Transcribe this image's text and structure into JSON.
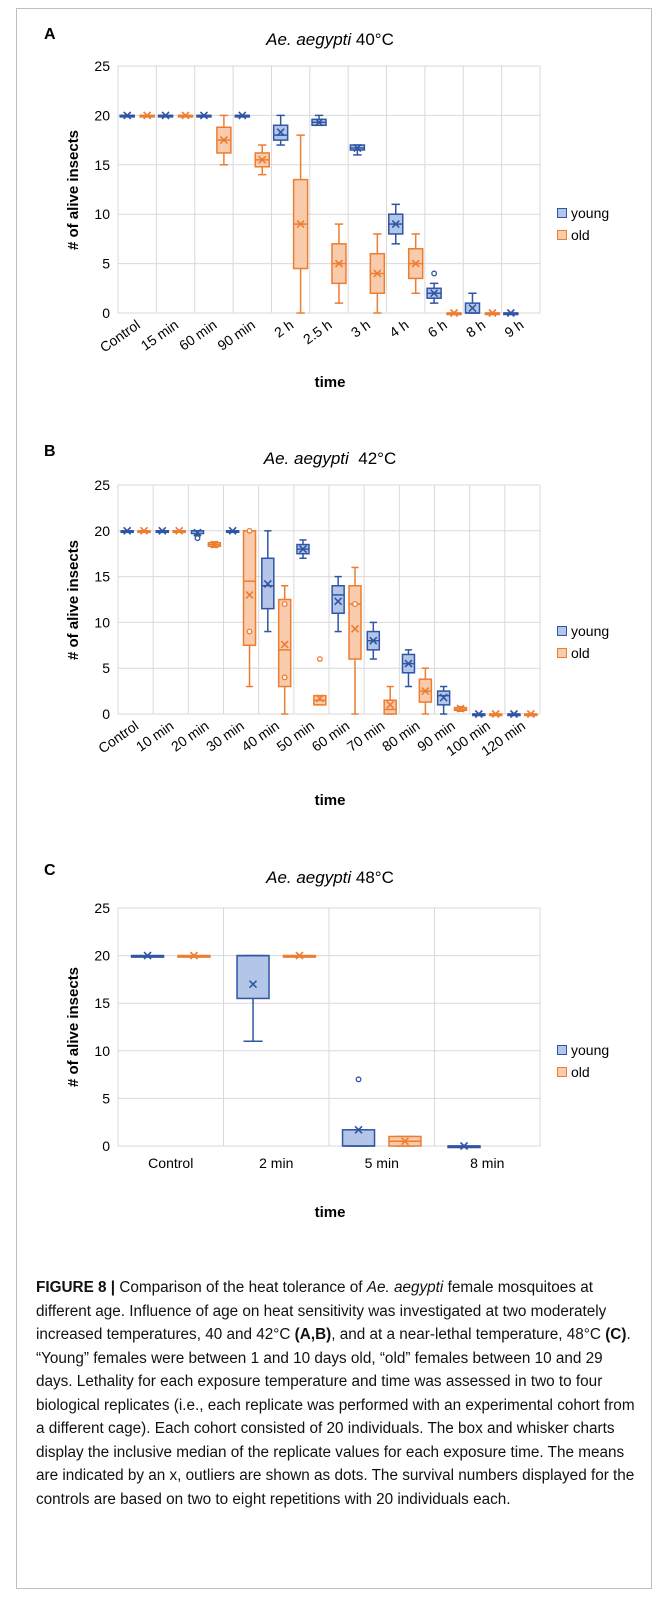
{
  "figure": {
    "label": "FIGURE 8 |",
    "caption": {
      "part1": " Comparison of the heat tolerance of ",
      "species": "Ae. aegypti",
      "part2": " female mosquitoes at different age. Influence of age on heat sensitivity was investigated at two moderately increased temperatures, 40 and 42°C ",
      "ref_ab": "(A,B)",
      "part3": ", and at a near-lethal temperature, 48°C ",
      "ref_c": "(C)",
      "part4": ". “Young” females were between 1 and 10 days old, “old” females between 10 and 29 days. Lethality for each exposure temperature and time was assessed in two to four biological replicates (i.e., each replicate was performed with an experimental cohort from a different cage). Each cohort consisted of 20 individuals. The box and whisker charts display the inclusive median of the replicate values for each exposure time. The means are indicated by an x, outliers are shown as dots. The survival numbers displayed for the controls are based on two to eight repetitions with 20 individuals each."
    }
  },
  "colors": {
    "young": "#2f55a4",
    "young_fill": "#b4c6e7",
    "old": "#ed7d31",
    "old_fill": "#f8cbad",
    "grid": "#d9d9d9"
  },
  "chart_data": [
    {
      "panel": "A",
      "type": "box",
      "title_species": "Ae. aegypti",
      "title_temp": " 40°C",
      "xlabel": "time",
      "ylabel": "# of alive insects",
      "ylim": [
        0,
        25
      ],
      "yticks": [
        0,
        5,
        10,
        15,
        20,
        25
      ],
      "legend": [
        "young",
        "old"
      ],
      "legend_position": "right",
      "categories": [
        "Control",
        "15 min",
        "60 min",
        "90 min",
        "2 h",
        "2.5 h",
        "3 h",
        "4 h",
        "6 h",
        "8 h",
        "9 h"
      ],
      "series": [
        {
          "name": "young",
          "boxes": [
            {
              "cat": 0,
              "min": 20,
              "q1": 20,
              "med": 20,
              "q3": 20,
              "max": 20,
              "mean": 20
            },
            {
              "cat": 1,
              "min": 20,
              "q1": 20,
              "med": 20,
              "q3": 20,
              "max": 20,
              "mean": 20
            },
            {
              "cat": 2,
              "min": 20,
              "q1": 20,
              "med": 20,
              "q3": 20,
              "max": 20,
              "mean": 20
            },
            {
              "cat": 3,
              "min": 20,
              "q1": 20,
              "med": 20,
              "q3": 20,
              "max": 20,
              "mean": 20
            },
            {
              "cat": 4,
              "min": 17,
              "q1": 17.5,
              "med": 18,
              "q3": 19,
              "max": 20,
              "mean": 18.3
            },
            {
              "cat": 5,
              "min": 19,
              "q1": 19,
              "med": 19.3,
              "q3": 19.6,
              "max": 20,
              "mean": 19.3
            },
            {
              "cat": 6,
              "min": 16,
              "q1": 16.5,
              "med": 16.7,
              "q3": 17,
              "max": 17,
              "mean": 16.7
            },
            {
              "cat": 7,
              "min": 7,
              "q1": 8,
              "med": 9,
              "q3": 10,
              "max": 11,
              "mean": 9
            },
            {
              "cat": 8,
              "min": 1,
              "q1": 1.5,
              "med": 2,
              "q3": 2.5,
              "max": 3,
              "mean": 2,
              "outliers": [
                4
              ]
            },
            {
              "cat": 9,
              "min": 0,
              "q1": 0,
              "med": 0,
              "q3": 1,
              "max": 2,
              "mean": 0.5
            },
            {
              "cat": 10,
              "min": 0,
              "q1": 0,
              "med": 0,
              "q3": 0,
              "max": 0,
              "mean": 0
            }
          ]
        },
        {
          "name": "old",
          "boxes": [
            {
              "cat": 0,
              "min": 20,
              "q1": 20,
              "med": 20,
              "q3": 20,
              "max": 20,
              "mean": 20
            },
            {
              "cat": 1,
              "min": 20,
              "q1": 20,
              "med": 20,
              "q3": 20,
              "max": 20,
              "mean": 20
            },
            {
              "cat": 2,
              "min": 15,
              "q1": 16.2,
              "med": 17.5,
              "q3": 18.8,
              "max": 20,
              "mean": 17.5
            },
            {
              "cat": 3,
              "min": 14,
              "q1": 14.8,
              "med": 15.5,
              "q3": 16.2,
              "max": 17,
              "mean": 15.5
            },
            {
              "cat": 4,
              "min": 0,
              "q1": 4.5,
              "med": 9,
              "q3": 13.5,
              "max": 18,
              "mean": 9
            },
            {
              "cat": 5,
              "min": 1,
              "q1": 3,
              "med": 5,
              "q3": 7,
              "max": 9,
              "mean": 5
            },
            {
              "cat": 6,
              "min": 0,
              "q1": 2,
              "med": 4,
              "q3": 6,
              "max": 8,
              "mean": 4
            },
            {
              "cat": 7,
              "min": 2,
              "q1": 3.5,
              "med": 5,
              "q3": 6.5,
              "max": 8,
              "mean": 5
            },
            {
              "cat": 8,
              "min": 0,
              "q1": 0,
              "med": 0,
              "q3": 0,
              "max": 0,
              "mean": 0
            },
            {
              "cat": 9,
              "min": 0,
              "q1": 0,
              "med": 0,
              "q3": 0,
              "max": 0,
              "mean": 0
            }
          ]
        }
      ]
    },
    {
      "panel": "B",
      "type": "box",
      "title_species": "Ae. aegypti",
      "title_temp": "  42°C",
      "xlabel": "time",
      "ylabel": "# of alive insects",
      "ylim": [
        0,
        25
      ],
      "yticks": [
        0,
        5,
        10,
        15,
        20,
        25
      ],
      "legend": [
        "young",
        "old"
      ],
      "legend_position": "right",
      "categories": [
        "Control",
        "10 min",
        "20 min",
        "30 min",
        "40 min",
        "50 min",
        "60 min",
        "70 min",
        "80 min",
        "90 min",
        "100 min",
        "120 min"
      ],
      "series": [
        {
          "name": "young",
          "boxes": [
            {
              "cat": 0,
              "min": 20,
              "q1": 20,
              "med": 20,
              "q3": 20,
              "max": 20,
              "mean": 20
            },
            {
              "cat": 1,
              "min": 20,
              "q1": 20,
              "med": 20,
              "q3": 20,
              "max": 20,
              "mean": 20
            },
            {
              "cat": 2,
              "min": 19.5,
              "q1": 19.7,
              "med": 20,
              "q3": 20,
              "max": 20,
              "mean": 19.8,
              "outliers": [
                19.2
              ]
            },
            {
              "cat": 3,
              "min": 20,
              "q1": 20,
              "med": 20,
              "q3": 20,
              "max": 20,
              "mean": 20
            },
            {
              "cat": 4,
              "min": 9,
              "q1": 11.5,
              "med": 14,
              "q3": 17,
              "max": 20,
              "mean": 14.2
            },
            {
              "cat": 5,
              "min": 17,
              "q1": 17.5,
              "med": 18,
              "q3": 18.5,
              "max": 19,
              "mean": 18
            },
            {
              "cat": 6,
              "min": 9,
              "q1": 11,
              "med": 13,
              "q3": 14,
              "max": 15,
              "mean": 12.3
            },
            {
              "cat": 7,
              "min": 6,
              "q1": 7,
              "med": 8,
              "q3": 9,
              "max": 10,
              "mean": 8
            },
            {
              "cat": 8,
              "min": 3,
              "q1": 4.5,
              "med": 5.5,
              "q3": 6.5,
              "max": 7,
              "mean": 5.5
            },
            {
              "cat": 9,
              "min": 0,
              "q1": 1,
              "med": 2,
              "q3": 2.5,
              "max": 3,
              "mean": 1.8
            },
            {
              "cat": 10,
              "min": 0,
              "q1": 0,
              "med": 0,
              "q3": 0,
              "max": 0,
              "mean": 0
            },
            {
              "cat": 11,
              "min": 0,
              "q1": 0,
              "med": 0,
              "q3": 0,
              "max": 0,
              "mean": 0
            }
          ]
        },
        {
          "name": "old",
          "boxes": [
            {
              "cat": 0,
              "min": 20,
              "q1": 20,
              "med": 20,
              "q3": 20,
              "max": 20,
              "mean": 20
            },
            {
              "cat": 1,
              "min": 20,
              "q1": 20,
              "med": 20,
              "q3": 20,
              "max": 20,
              "mean": 20
            },
            {
              "cat": 2,
              "min": 18.2,
              "q1": 18.3,
              "med": 18.5,
              "q3": 18.7,
              "max": 18.8,
              "mean": 18.5
            },
            {
              "cat": 3,
              "min": 3,
              "q1": 7.5,
              "med": 14.5,
              "q3": 20,
              "max": 20,
              "mean": 13,
              "outliers": [
                9,
                20
              ]
            },
            {
              "cat": 4,
              "min": 0,
              "q1": 3,
              "med": 7,
              "q3": 12.5,
              "max": 14,
              "mean": 7.6,
              "outliers": [
                4,
                12
              ]
            },
            {
              "cat": 5,
              "min": 1,
              "q1": 1,
              "med": 1.5,
              "q3": 2,
              "max": 2,
              "mean": 1.7,
              "outliers": [
                6
              ]
            },
            {
              "cat": 6,
              "min": 0,
              "q1": 6,
              "med": 12,
              "q3": 14,
              "max": 16,
              "mean": 9.3,
              "outliers": [
                12
              ]
            },
            {
              "cat": 7,
              "min": 0,
              "q1": 0,
              "med": 0.5,
              "q3": 1.5,
              "max": 3,
              "mean": 1
            },
            {
              "cat": 8,
              "min": 0,
              "q1": 1.3,
              "med": 2.5,
              "q3": 3.8,
              "max": 5,
              "mean": 2.5
            },
            {
              "cat": 9,
              "min": 0.3,
              "q1": 0.4,
              "med": 0.5,
              "q3": 0.7,
              "max": 0.8,
              "mean": 0.6
            },
            {
              "cat": 10,
              "min": 0,
              "q1": 0,
              "med": 0,
              "q3": 0,
              "max": 0,
              "mean": 0
            },
            {
              "cat": 11,
              "min": 0,
              "q1": 0,
              "med": 0,
              "q3": 0,
              "max": 0,
              "mean": 0
            }
          ]
        }
      ]
    },
    {
      "panel": "C",
      "type": "box",
      "title_species": "Ae. aegypti",
      "title_temp": " 48°C",
      "xlabel": "time",
      "ylabel": "# of alive insects",
      "ylim": [
        0,
        25
      ],
      "yticks": [
        0,
        5,
        10,
        15,
        20,
        25
      ],
      "legend": [
        "young",
        "old"
      ],
      "legend_position": "right",
      "categories": [
        "Control",
        "2 min",
        "5 min",
        "8 min"
      ],
      "series": [
        {
          "name": "young",
          "boxes": [
            {
              "cat": 0,
              "min": 20,
              "q1": 20,
              "med": 20,
              "q3": 20,
              "max": 20,
              "mean": 20
            },
            {
              "cat": 1,
              "min": 11,
              "q1": 15.5,
              "med": 20,
              "q3": 20,
              "max": 20,
              "mean": 17
            },
            {
              "cat": 2,
              "min": 0,
              "q1": 0,
              "med": 0,
              "q3": 1.7,
              "max": 1.7,
              "mean": 1.7,
              "outliers": [
                7
              ]
            },
            {
              "cat": 3,
              "min": 0,
              "q1": 0,
              "med": 0,
              "q3": 0,
              "max": 0,
              "mean": 0
            }
          ]
        },
        {
          "name": "old",
          "boxes": [
            {
              "cat": 0,
              "min": 20,
              "q1": 20,
              "med": 20,
              "q3": 20,
              "max": 20,
              "mean": 20
            },
            {
              "cat": 1,
              "min": 20,
              "q1": 20,
              "med": 20,
              "q3": 20,
              "max": 20,
              "mean": 20
            },
            {
              "cat": 2,
              "min": 0,
              "q1": 0,
              "med": 0.5,
              "q3": 1,
              "max": 1,
              "mean": 0.5
            }
          ]
        }
      ]
    }
  ]
}
